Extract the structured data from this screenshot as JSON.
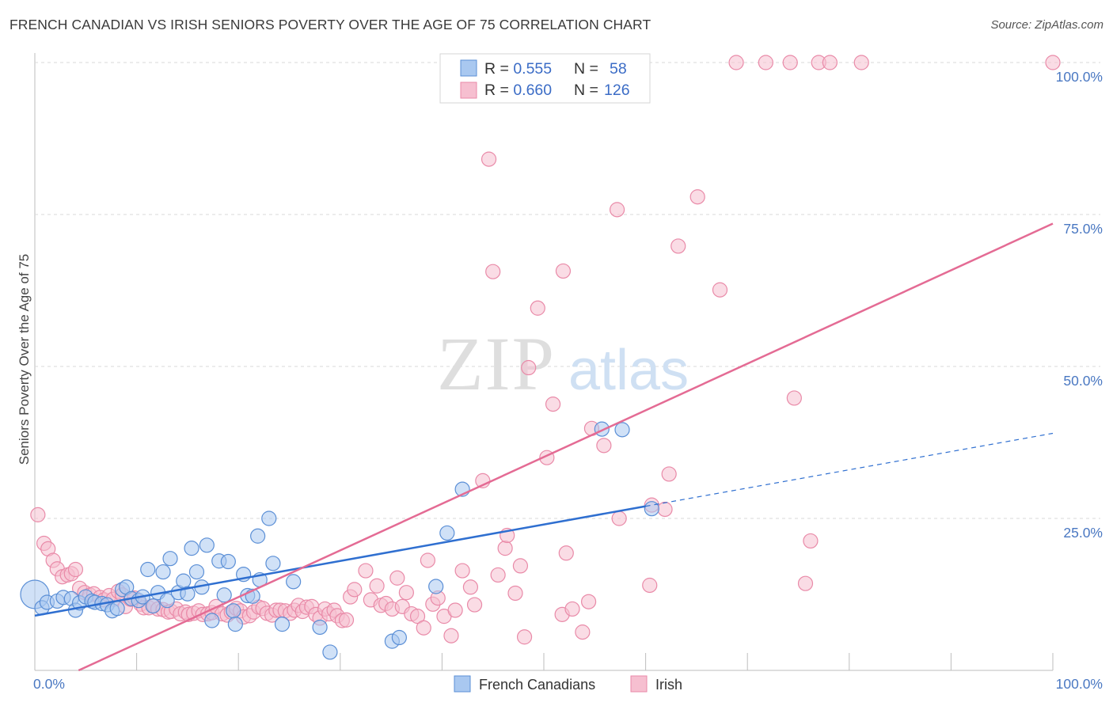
{
  "header": {
    "title": "FRENCH CANADIAN VS IRISH SENIORS POVERTY OVER THE AGE OF 75 CORRELATION CHART",
    "source": "Source: ZipAtlas.com"
  },
  "watermark": {
    "zip": "ZIP",
    "atlas": "atlas"
  },
  "legend_top": {
    "rows": [
      {
        "r_label": "R = ",
        "r_value": "0.555",
        "n_label": "N = ",
        "n_value": "58"
      },
      {
        "r_label": "R = ",
        "r_value": "0.660",
        "n_label": "N = ",
        "n_value": "126"
      }
    ]
  },
  "legend_bottom": {
    "series1": "French Canadians",
    "series2": "Irish"
  },
  "colors": {
    "blue_fill": "#a9c8f0",
    "blue_stroke": "#5b8fd6",
    "blue_line": "#2f6fd0",
    "pink_fill": "#f6bfd0",
    "pink_stroke": "#e98aa8",
    "pink_line": "#e46b94",
    "grid": "#d9d9d9",
    "tick_text": "#4a78c2"
  },
  "chart_data": {
    "type": "scatter",
    "title": "FRENCH CANADIAN VS IRISH SENIORS POVERTY OVER THE AGE OF 75 CORRELATION CHART",
    "xlabel": "",
    "ylabel": "Seniors Poverty Over the Age of 75",
    "xlim": [
      0,
      100
    ],
    "ylim": [
      0,
      100
    ],
    "x_tick_labels": [
      "0.0%",
      "100.0%"
    ],
    "y_tick_labels": [
      "25.0%",
      "50.0%",
      "75.0%",
      "100.0%"
    ],
    "y_ticks": [
      25,
      50,
      75,
      100
    ],
    "grid": true,
    "legend_position": "top-center",
    "series": [
      {
        "name": "French Canadians",
        "R": 0.555,
        "N": 58,
        "trend": {
          "x1": 0,
          "y1": 9.0,
          "x2": 60,
          "y2": 27.0,
          "dashed_to_x": 100,
          "dashed_to_y": 39.0
        },
        "points": [
          [
            0.0,
            12.5
          ],
          [
            0.7,
            10.3
          ],
          [
            1.2,
            11.2
          ],
          [
            2.2,
            11.4
          ],
          [
            2.8,
            12.0
          ],
          [
            3.6,
            11.8
          ],
          [
            4.0,
            9.9
          ],
          [
            4.4,
            11.1
          ],
          [
            5.0,
            12.1
          ],
          [
            5.6,
            11.4
          ],
          [
            5.9,
            11.2
          ],
          [
            6.6,
            11.0
          ],
          [
            7.1,
            10.8
          ],
          [
            7.6,
            9.8
          ],
          [
            8.1,
            10.2
          ],
          [
            8.6,
            13.3
          ],
          [
            9.0,
            13.7
          ],
          [
            9.5,
            11.8
          ],
          [
            10.2,
            11.5
          ],
          [
            10.6,
            12.1
          ],
          [
            11.1,
            16.6
          ],
          [
            11.6,
            10.6
          ],
          [
            12.1,
            12.8
          ],
          [
            12.6,
            16.2
          ],
          [
            13.0,
            11.5
          ],
          [
            13.3,
            18.4
          ],
          [
            14.1,
            12.8
          ],
          [
            14.6,
            14.7
          ],
          [
            15.0,
            12.6
          ],
          [
            15.4,
            20.1
          ],
          [
            15.9,
            16.2
          ],
          [
            16.4,
            13.7
          ],
          [
            16.9,
            20.6
          ],
          [
            17.4,
            8.2
          ],
          [
            18.1,
            18.0
          ],
          [
            18.6,
            12.4
          ],
          [
            19.0,
            17.9
          ],
          [
            19.5,
            9.8
          ],
          [
            19.7,
            7.6
          ],
          [
            20.5,
            15.8
          ],
          [
            20.9,
            12.3
          ],
          [
            21.4,
            12.2
          ],
          [
            21.9,
            22.1
          ],
          [
            22.1,
            14.9
          ],
          [
            23.0,
            25.0
          ],
          [
            23.4,
            17.6
          ],
          [
            24.3,
            7.6
          ],
          [
            25.4,
            14.6
          ],
          [
            28.0,
            7.1
          ],
          [
            29.0,
            3.0
          ],
          [
            35.1,
            4.8
          ],
          [
            35.8,
            5.4
          ],
          [
            39.4,
            13.8
          ],
          [
            40.5,
            22.6
          ],
          [
            42.0,
            29.8
          ],
          [
            55.7,
            39.7
          ],
          [
            57.7,
            39.6
          ],
          [
            60.6,
            26.6
          ]
        ]
      },
      {
        "name": "Irish",
        "R": 0.66,
        "N": 126,
        "trend": {
          "x1": 4.3,
          "y1": 0,
          "x2": 100,
          "y2": 73.5
        },
        "points": [
          [
            0.3,
            25.6
          ],
          [
            0.9,
            20.9
          ],
          [
            1.3,
            20.0
          ],
          [
            1.8,
            18.1
          ],
          [
            2.2,
            16.7
          ],
          [
            2.7,
            15.4
          ],
          [
            3.2,
            15.7
          ],
          [
            3.6,
            15.9
          ],
          [
            4.0,
            16.6
          ],
          [
            4.4,
            13.5
          ],
          [
            4.9,
            12.8
          ],
          [
            5.4,
            12.4
          ],
          [
            5.8,
            12.6
          ],
          [
            6.4,
            12.0
          ],
          [
            6.8,
            11.6
          ],
          [
            7.3,
            12.3
          ],
          [
            7.7,
            11.7
          ],
          [
            8.2,
            13.0
          ],
          [
            8.6,
            12.4
          ],
          [
            8.9,
            10.5
          ],
          [
            9.4,
            11.7
          ],
          [
            9.8,
            11.9
          ],
          [
            10.4,
            10.9
          ],
          [
            10.7,
            10.3
          ],
          [
            11.2,
            10.3
          ],
          [
            11.7,
            10.6
          ],
          [
            12.1,
            10.1
          ],
          [
            12.6,
            10.0
          ],
          [
            13.1,
            9.6
          ],
          [
            13.4,
            9.7
          ],
          [
            13.9,
            10.1
          ],
          [
            14.3,
            9.3
          ],
          [
            14.8,
            9.6
          ],
          [
            15.1,
            9.2
          ],
          [
            15.6,
            9.4
          ],
          [
            16.1,
            9.8
          ],
          [
            16.5,
            9.2
          ],
          [
            17.0,
            9.3
          ],
          [
            17.4,
            9.5
          ],
          [
            17.8,
            10.5
          ],
          [
            18.4,
            9.3
          ],
          [
            18.9,
            9.1
          ],
          [
            19.3,
            9.6
          ],
          [
            19.8,
            10.2
          ],
          [
            20.2,
            9.8
          ],
          [
            20.5,
            8.8
          ],
          [
            21.1,
            9.0
          ],
          [
            21.5,
            9.6
          ],
          [
            22.0,
            10.4
          ],
          [
            22.4,
            10.2
          ],
          [
            22.8,
            9.4
          ],
          [
            23.3,
            9.1
          ],
          [
            23.7,
            9.9
          ],
          [
            24.1,
            9.9
          ],
          [
            24.6,
            9.8
          ],
          [
            25.1,
            9.4
          ],
          [
            25.5,
            9.9
          ],
          [
            25.9,
            10.7
          ],
          [
            26.3,
            9.7
          ],
          [
            26.7,
            10.4
          ],
          [
            27.2,
            10.5
          ],
          [
            27.6,
            9.2
          ],
          [
            28.0,
            8.6
          ],
          [
            28.5,
            10.1
          ],
          [
            28.9,
            9.3
          ],
          [
            29.4,
            9.9
          ],
          [
            29.7,
            9.0
          ],
          [
            30.2,
            8.2
          ],
          [
            30.6,
            8.3
          ],
          [
            31.0,
            12.1
          ],
          [
            31.4,
            13.3
          ],
          [
            32.5,
            16.4
          ],
          [
            33.0,
            11.6
          ],
          [
            33.6,
            13.9
          ],
          [
            34.0,
            10.7
          ],
          [
            34.5,
            11.0
          ],
          [
            35.1,
            10.1
          ],
          [
            35.6,
            15.2
          ],
          [
            36.1,
            10.5
          ],
          [
            36.5,
            12.8
          ],
          [
            37.0,
            9.3
          ],
          [
            37.6,
            8.9
          ],
          [
            38.2,
            7.0
          ],
          [
            38.6,
            18.1
          ],
          [
            39.1,
            10.9
          ],
          [
            39.6,
            11.9
          ],
          [
            40.2,
            8.9
          ],
          [
            40.9,
            5.7
          ],
          [
            41.3,
            9.9
          ],
          [
            42.0,
            16.4
          ],
          [
            42.8,
            13.7
          ],
          [
            43.2,
            10.8
          ],
          [
            44.0,
            31.2
          ],
          [
            44.6,
            84.1
          ],
          [
            45.0,
            65.6
          ],
          [
            45.5,
            15.7
          ],
          [
            46.2,
            20.1
          ],
          [
            46.4,
            22.2
          ],
          [
            47.2,
            12.7
          ],
          [
            47.7,
            17.2
          ],
          [
            48.1,
            5.5
          ],
          [
            48.5,
            49.8
          ],
          [
            49.4,
            59.6
          ],
          [
            50.3,
            35.0
          ],
          [
            50.9,
            43.8
          ],
          [
            51.8,
            9.2
          ],
          [
            51.9,
            65.7
          ],
          [
            52.2,
            19.3
          ],
          [
            52.8,
            10.1
          ],
          [
            53.8,
            6.3
          ],
          [
            54.4,
            11.3
          ],
          [
            54.7,
            39.8
          ],
          [
            55.9,
            37.0
          ],
          [
            57.2,
            75.8
          ],
          [
            57.4,
            25.0
          ],
          [
            60.4,
            14.0
          ],
          [
            60.6,
            27.2
          ],
          [
            61.9,
            26.5
          ],
          [
            62.3,
            32.3
          ],
          [
            63.2,
            69.8
          ],
          [
            65.1,
            77.9
          ],
          [
            67.3,
            62.6
          ],
          [
            68.9,
            100
          ],
          [
            71.8,
            100
          ],
          [
            74.2,
            100
          ],
          [
            74.6,
            44.8
          ],
          [
            75.7,
            14.3
          ],
          [
            76.2,
            21.3
          ],
          [
            77.0,
            100
          ],
          [
            78.1,
            100
          ],
          [
            81.2,
            100
          ],
          [
            100,
            100
          ]
        ]
      }
    ]
  }
}
